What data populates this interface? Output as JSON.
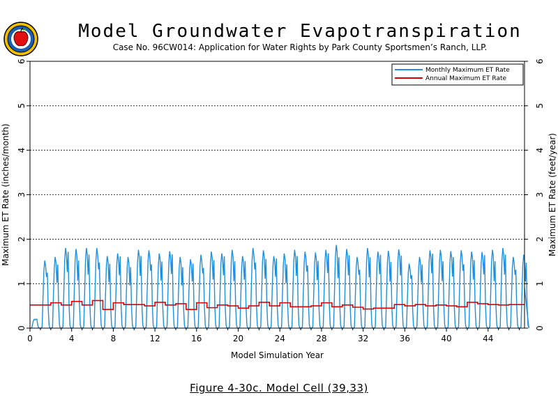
{
  "title": "Model Groundwater Evapotranspiration",
  "subtitle": "Case No. 96CW014: Application for Water Rights by Park County Sportsmen’s Ranch, LLP.",
  "caption": "Figure 4-30c.  Model Cell (39,33)",
  "logo": {
    "icon": "apple-seal-icon"
  },
  "colors": {
    "monthly": "#1e90e0",
    "annual": "#e00000",
    "grid": "#000000"
  },
  "chart_data": {
    "type": "line",
    "title": "Model Groundwater Evapotranspiration",
    "xlabel": "Model Simulation Year",
    "ylabel_left": "Maximum ET Rate (inches/month)",
    "ylabel_right": "Maximum ET Rate (feet/year)",
    "xlim": [
      0,
      47.5
    ],
    "ylim": [
      0,
      6
    ],
    "x_ticks": [
      0,
      4,
      8,
      12,
      16,
      20,
      24,
      28,
      32,
      36,
      40,
      44
    ],
    "y_ticks": [
      0,
      1,
      2,
      3,
      4,
      5,
      6
    ],
    "y_ticks_right": [
      0,
      1,
      2,
      3,
      4,
      5,
      6
    ],
    "grid": "horizontal dashed at y = 1..5",
    "legend": {
      "placement": "top-right",
      "entries": [
        "Monthly Maximum ET Rate",
        "Annual Maximum ET Rate"
      ]
    },
    "series": [
      {
        "name": "Monthly Maximum ET Rate",
        "style": "line",
        "yearly_peaks": [
          0.2,
          1.52,
          1.6,
          1.8,
          1.78,
          1.8,
          1.8,
          1.62,
          1.68,
          1.6,
          1.76,
          1.75,
          1.68,
          1.73,
          1.6,
          1.55,
          1.65,
          1.72,
          1.68,
          1.76,
          1.62,
          1.8,
          1.75,
          1.62,
          1.68,
          1.76,
          1.72,
          1.7,
          1.76,
          1.87,
          1.78,
          1.6,
          1.8,
          1.72,
          1.74,
          1.77,
          1.45,
          1.6,
          1.75,
          1.76,
          1.73,
          1.75,
          1.72,
          1.71,
          1.76,
          1.8,
          1.6,
          1.65
        ]
      },
      {
        "name": "Annual Maximum ET Rate",
        "style": "step",
        "values": [
          0.52,
          0.52,
          0.57,
          0.52,
          0.6,
          0.52,
          0.62,
          0.42,
          0.57,
          0.53,
          0.53,
          0.5,
          0.58,
          0.52,
          0.55,
          0.42,
          0.57,
          0.46,
          0.52,
          0.5,
          0.45,
          0.5,
          0.58,
          0.5,
          0.57,
          0.48,
          0.48,
          0.5,
          0.57,
          0.48,
          0.52,
          0.47,
          0.43,
          0.45,
          0.45,
          0.53,
          0.5,
          0.53,
          0.5,
          0.52,
          0.5,
          0.48,
          0.58,
          0.55,
          0.53,
          0.52,
          0.53,
          0.53
        ]
      }
    ]
  }
}
